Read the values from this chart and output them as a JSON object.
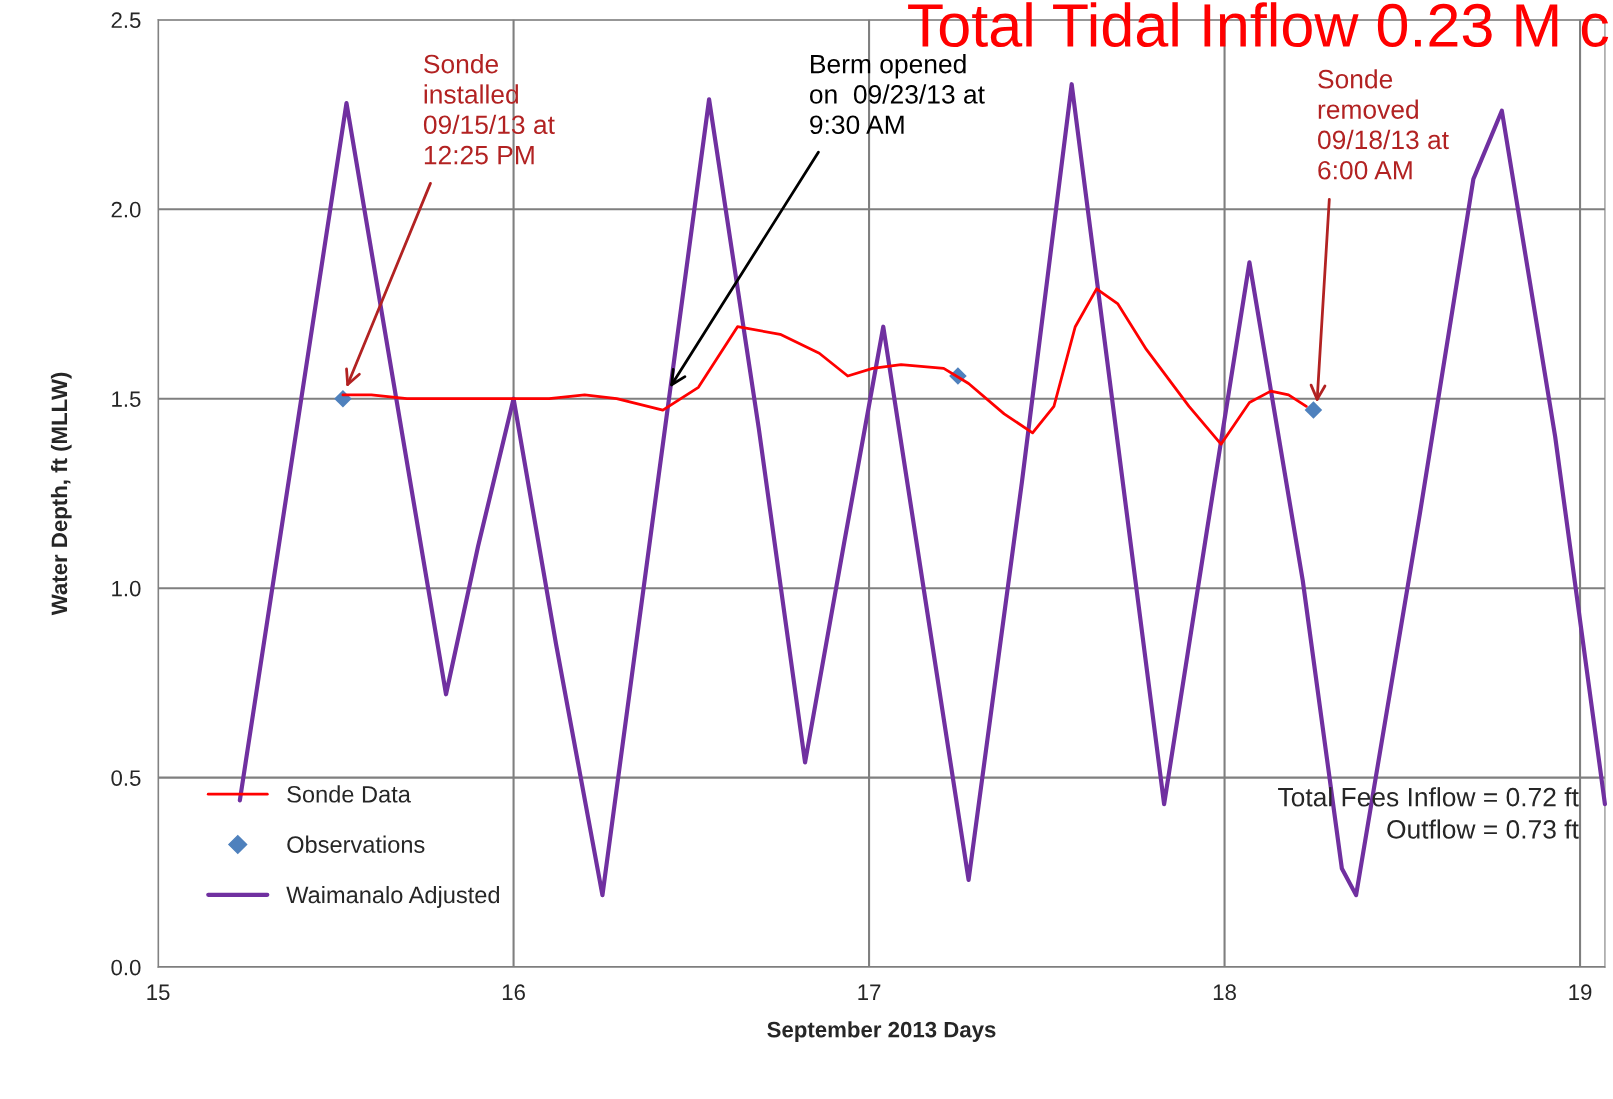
{
  "chart_data": {
    "type": "line",
    "xlabel": "September 2013 Days",
    "ylabel": "Water Depth, ft (MLLW)",
    "xlim": [
      15,
      19.07
    ],
    "xticks": [
      15,
      16,
      17,
      18,
      19
    ],
    "ylim": [
      0,
      2.5
    ],
    "yticks": [
      {
        "value": 0,
        "label": "0.0"
      },
      0.5,
      {
        "value": 1,
        "label": "1.0"
      },
      1.5,
      {
        "value": 2,
        "label": "2.0"
      },
      2.5
    ],
    "grid": true,
    "legend": "bottom left",
    "series": [
      {
        "name": "Sonde Data",
        "color": "#ff0000",
        "marker": "none",
        "x": [
          15.52,
          15.6,
          15.7,
          15.8,
          15.9,
          16.0,
          16.1,
          16.2,
          16.29,
          16.42,
          16.52,
          16.63,
          16.75,
          16.86,
          16.94,
          17.01,
          17.09,
          17.21,
          17.28,
          17.38,
          17.46,
          17.52,
          17.58,
          17.64,
          17.7,
          17.78,
          17.9,
          17.99,
          18.07,
          18.13,
          18.18,
          18.23
        ],
        "values": [
          1.51,
          1.51,
          1.5,
          1.5,
          1.5,
          1.5,
          1.5,
          1.51,
          1.5,
          1.47,
          1.53,
          1.69,
          1.67,
          1.62,
          1.56,
          1.58,
          1.59,
          1.58,
          1.54,
          1.46,
          1.41,
          1.48,
          1.69,
          1.79,
          1.75,
          1.63,
          1.48,
          1.38,
          1.49,
          1.52,
          1.51,
          1.48
        ]
      },
      {
        "name": "Observations",
        "type": "scatter",
        "color": "#4f81bd",
        "marker": "diamond",
        "x": [
          15.52,
          17.25,
          18.25
        ],
        "values": [
          1.5,
          1.56,
          1.47
        ]
      },
      {
        "name": "Waimanalo Adjusted",
        "color": "#7030a0",
        "marker": "none",
        "x": [
          15.23,
          15.38,
          15.53,
          15.67,
          15.81,
          15.9,
          16.0,
          16.12,
          16.25,
          16.4,
          16.55,
          16.69,
          16.82,
          16.93,
          17.04,
          17.16,
          17.28,
          17.43,
          17.57,
          17.7,
          17.83,
          17.95,
          18.07,
          18.22,
          18.33,
          18.37,
          18.55,
          18.7,
          18.78,
          18.93,
          19.07
        ],
        "values": [
          0.44,
          1.36,
          2.28,
          1.5,
          0.72,
          1.11,
          1.5,
          0.85,
          0.19,
          1.24,
          2.29,
          1.42,
          0.54,
          1.12,
          1.69,
          0.96,
          0.23,
          1.28,
          2.33,
          1.38,
          0.43,
          1.15,
          1.86,
          1.02,
          0.26,
          0.19,
          1.2,
          2.08,
          2.26,
          1.4,
          0.43
        ]
      }
    ],
    "annotations": [
      {
        "text": "Sonde\ninstalled\n09/15/13 at\n12:25 PM",
        "x": 15.53,
        "y": 1.53
      },
      {
        "text": "Berm opened\non  09/23/13 at\n9:30 AM",
        "x": 16.44,
        "y": 1.53
      },
      {
        "text": "Sonde\nremoved\n09/18/13 at\n6:00 AM",
        "x": 18.26,
        "y": 1.49
      },
      "Total Fees Inflow = 0.72 ft\nOutflow = 0.73 ft",
      "Total Tidal Inflow 0.23 M c"
    ]
  }
}
